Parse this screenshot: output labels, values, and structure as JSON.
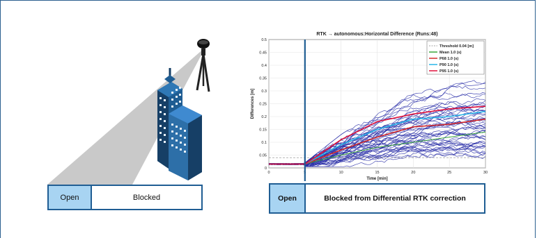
{
  "left_panel": {
    "bar": {
      "open_label": "Open",
      "blocked_label": "Blocked"
    }
  },
  "right_panel": {
    "bar": {
      "open_label": "Open",
      "blocked_label": "Blocked from Differential RTK correction"
    }
  },
  "colors": {
    "frame": "#2b5f8f",
    "open_fill": "#a8d4f2",
    "bar_border": "#1f5d93",
    "building_blue": "#1f5d93",
    "run_lines": "#2a2fa8",
    "mean": "#3aa53a",
    "p68": "#d42a2a",
    "p90": "#29b5e8",
    "p95": "#e0103a",
    "event_line": "#1f5d93"
  },
  "icons": [
    "gnss-antenna-icon",
    "skyscraper-icon"
  ],
  "chart_data": {
    "type": "line",
    "title": "RTK → autonomous:Horizontal Difference (Runs:48)",
    "xlabel": "Time [min]",
    "ylabel": "Differences [m]",
    "xlim": [
      0,
      30
    ],
    "ylim": [
      0,
      0.5
    ],
    "xticks": [
      0,
      5,
      10,
      15,
      20,
      25,
      30
    ],
    "yticks": [
      0,
      0.05,
      0.1,
      0.15,
      0.2,
      0.25,
      0.3,
      0.35,
      0.4,
      0.45,
      0.5
    ],
    "ytick_labels": [
      "0",
      "0.05",
      "0.1",
      "0.15",
      "0.2",
      "0.25",
      "0.3",
      "0.35",
      "0.4",
      "0.45",
      "0.5"
    ],
    "grid": true,
    "legend_position": "top-right",
    "event_x": 5,
    "legend": [
      "Threshold 0.04 [m]",
      "Mean 1.0 (s)",
      "P68 1.0 (s)",
      "P90 1.0 (s)",
      "P95 1.0 (s)"
    ],
    "threshold": {
      "name": "Threshold 0.04 [m]",
      "value": 0.04
    },
    "series": [
      {
        "name": "Mean 1.0 (s)",
        "x": [
          0,
          5,
          10,
          15,
          20,
          25,
          30
        ],
        "values": [
          0.015,
          0.015,
          0.05,
          0.08,
          0.1,
          0.12,
          0.14
        ]
      },
      {
        "name": "P68 1.0 (s)",
        "x": [
          0,
          5,
          10,
          15,
          20,
          25,
          30
        ],
        "values": [
          0.015,
          0.015,
          0.07,
          0.12,
          0.16,
          0.17,
          0.19
        ]
      },
      {
        "name": "P90 1.0 (s)",
        "x": [
          0,
          5,
          10,
          15,
          20,
          25,
          30
        ],
        "values": [
          0.015,
          0.015,
          0.09,
          0.15,
          0.19,
          0.2,
          0.22
        ]
      },
      {
        "name": "P95 1.0 (s)",
        "x": [
          0,
          5,
          10,
          15,
          20,
          25,
          30
        ],
        "values": [
          0.015,
          0.015,
          0.11,
          0.18,
          0.21,
          0.23,
          0.24
        ]
      }
    ],
    "runs_count": 48,
    "runs_envelope": {
      "x": [
        0,
        5,
        10,
        15,
        20,
        25,
        30
      ],
      "max": [
        0.02,
        0.02,
        0.13,
        0.22,
        0.3,
        0.34,
        0.35
      ]
    }
  }
}
